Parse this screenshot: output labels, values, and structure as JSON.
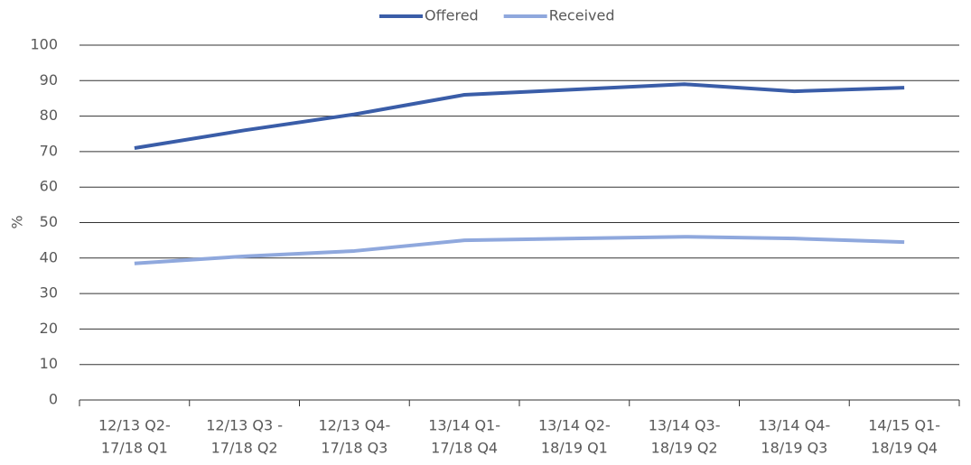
{
  "chart_data": {
    "type": "line",
    "y_label": "%",
    "categories": [
      [
        "12/13 Q2-",
        "17/18 Q1"
      ],
      [
        "12/13 Q3 -",
        "17/18 Q2"
      ],
      [
        "12/13 Q4-",
        "17/18 Q3"
      ],
      [
        "13/14 Q1-",
        "17/18 Q4"
      ],
      [
        "13/14 Q2-",
        "18/19 Q1"
      ],
      [
        "13/14 Q3-",
        "18/19 Q2"
      ],
      [
        "13/14 Q4-",
        "18/19 Q3"
      ],
      [
        "14/15 Q1-",
        "18/19 Q4"
      ]
    ],
    "series": [
      {
        "name": "Offered",
        "color": "#3a5da8",
        "values": [
          71,
          76,
          80.5,
          86,
          87.5,
          89,
          87,
          88
        ]
      },
      {
        "name": "Received",
        "color": "#8fa8dd",
        "values": [
          38.5,
          40.5,
          42,
          45,
          45.5,
          46,
          45.5,
          44.5
        ]
      }
    ],
    "ylim": [
      0,
      100
    ],
    "yticks": [
      0,
      10,
      20,
      30,
      40,
      50,
      60,
      70,
      80,
      90,
      100
    ],
    "grid": true,
    "legend": "top"
  }
}
